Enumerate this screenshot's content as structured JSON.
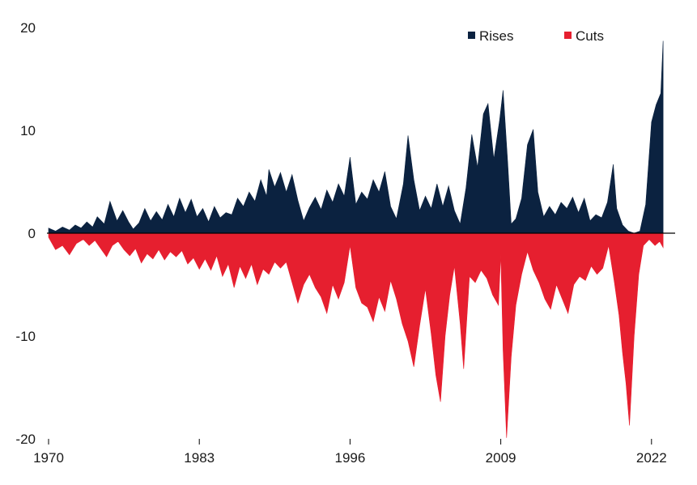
{
  "chart_data": {
    "type": "area",
    "title": "",
    "xlabel": "",
    "ylabel": "",
    "xlim": [
      1970,
      2023.2
    ],
    "ylim": [
      -20,
      20
    ],
    "x_ticks": [
      "1970",
      "1983",
      "1996",
      "2009",
      "2022"
    ],
    "y_ticks": [
      "20",
      "10",
      "0",
      "-10",
      "-20"
    ],
    "grid": false,
    "legend": {
      "placement": "top-right"
    },
    "series": [
      {
        "name": "Rises",
        "color": "#0b2240",
        "points": [
          [
            1970.0,
            0.5
          ],
          [
            1970.6,
            0.2
          ],
          [
            1971.2,
            0.6
          ],
          [
            1971.8,
            0.3
          ],
          [
            1972.3,
            0.8
          ],
          [
            1972.8,
            0.5
          ],
          [
            1973.3,
            1.1
          ],
          [
            1973.8,
            0.6
          ],
          [
            1974.2,
            1.6
          ],
          [
            1974.8,
            0.9
          ],
          [
            1975.3,
            3.1
          ],
          [
            1975.9,
            1.2
          ],
          [
            1976.4,
            2.2
          ],
          [
            1976.9,
            1.1
          ],
          [
            1977.3,
            0.4
          ],
          [
            1977.8,
            1.0
          ],
          [
            1978.3,
            2.4
          ],
          [
            1978.8,
            1.2
          ],
          [
            1979.3,
            2.1
          ],
          [
            1979.8,
            1.3
          ],
          [
            1980.3,
            2.8
          ],
          [
            1980.8,
            1.6
          ],
          [
            1981.3,
            3.4
          ],
          [
            1981.8,
            2.0
          ],
          [
            1982.3,
            3.3
          ],
          [
            1982.8,
            1.6
          ],
          [
            1983.3,
            2.4
          ],
          [
            1983.8,
            1.1
          ],
          [
            1984.3,
            2.6
          ],
          [
            1984.8,
            1.5
          ],
          [
            1985.3,
            2.0
          ],
          [
            1985.8,
            1.8
          ],
          [
            1986.3,
            3.4
          ],
          [
            1986.8,
            2.6
          ],
          [
            1987.3,
            4.0
          ],
          [
            1987.8,
            3.1
          ],
          [
            1988.3,
            5.2
          ],
          [
            1988.8,
            3.6
          ],
          [
            1989.0,
            6.2
          ],
          [
            1989.5,
            4.5
          ],
          [
            1990.0,
            5.9
          ],
          [
            1990.5,
            4.0
          ],
          [
            1991.0,
            5.7
          ],
          [
            1991.5,
            3.2
          ],
          [
            1992.0,
            1.2
          ],
          [
            1992.5,
            2.5
          ],
          [
            1993.0,
            3.5
          ],
          [
            1993.5,
            2.3
          ],
          [
            1994.0,
            4.2
          ],
          [
            1994.5,
            3.0
          ],
          [
            1995.0,
            4.8
          ],
          [
            1995.5,
            3.6
          ],
          [
            1996.0,
            7.4
          ],
          [
            1996.5,
            2.8
          ],
          [
            1997.0,
            4.0
          ],
          [
            1997.5,
            3.3
          ],
          [
            1998.0,
            5.2
          ],
          [
            1998.5,
            4.0
          ],
          [
            1999.0,
            6.0
          ],
          [
            1999.5,
            2.6
          ],
          [
            2000.0,
            1.4
          ],
          [
            2000.6,
            4.8
          ],
          [
            2001.0,
            9.5
          ],
          [
            2001.5,
            5.2
          ],
          [
            2002.0,
            2.2
          ],
          [
            2002.5,
            3.6
          ],
          [
            2003.0,
            2.4
          ],
          [
            2003.5,
            4.8
          ],
          [
            2004.0,
            2.6
          ],
          [
            2004.5,
            4.6
          ],
          [
            2005.0,
            2.2
          ],
          [
            2005.5,
            0.9
          ],
          [
            2006.0,
            4.4
          ],
          [
            2006.5,
            9.6
          ],
          [
            2007.0,
            6.4
          ],
          [
            2007.5,
            11.6
          ],
          [
            2007.9,
            12.6
          ],
          [
            2008.4,
            7.2
          ],
          [
            2008.9,
            11.0
          ],
          [
            2009.2,
            13.9
          ],
          [
            2009.6,
            6.8
          ],
          [
            2009.9,
            0.9
          ],
          [
            2010.3,
            1.4
          ],
          [
            2010.8,
            3.4
          ],
          [
            2011.3,
            8.6
          ],
          [
            2011.8,
            10.1
          ],
          [
            2012.2,
            4.0
          ],
          [
            2012.7,
            1.6
          ],
          [
            2013.2,
            2.6
          ],
          [
            2013.7,
            1.8
          ],
          [
            2014.2,
            3.0
          ],
          [
            2014.7,
            2.4
          ],
          [
            2015.2,
            3.5
          ],
          [
            2015.7,
            2.0
          ],
          [
            2016.2,
            3.4
          ],
          [
            2016.7,
            1.2
          ],
          [
            2017.2,
            1.8
          ],
          [
            2017.7,
            1.5
          ],
          [
            2018.2,
            3.0
          ],
          [
            2018.7,
            6.7
          ],
          [
            2019.0,
            2.4
          ],
          [
            2019.5,
            0.8
          ],
          [
            2020.0,
            0.2
          ],
          [
            2020.5,
            0.0
          ],
          [
            2021.0,
            0.2
          ],
          [
            2021.5,
            2.8
          ],
          [
            2022.0,
            10.8
          ],
          [
            2022.4,
            12.5
          ],
          [
            2022.8,
            13.6
          ],
          [
            2023.0,
            18.7
          ]
        ]
      },
      {
        "name": "Cuts",
        "color": "#e61f2f",
        "points": [
          [
            1970.0,
            -0.4
          ],
          [
            1970.6,
            -1.6
          ],
          [
            1971.2,
            -1.2
          ],
          [
            1971.8,
            -2.1
          ],
          [
            1972.4,
            -1.0
          ],
          [
            1973.0,
            -0.6
          ],
          [
            1973.5,
            -1.2
          ],
          [
            1974.0,
            -0.7
          ],
          [
            1974.5,
            -1.5
          ],
          [
            1975.0,
            -2.3
          ],
          [
            1975.5,
            -1.2
          ],
          [
            1976.0,
            -0.8
          ],
          [
            1976.5,
            -1.6
          ],
          [
            1977.0,
            -2.2
          ],
          [
            1977.5,
            -1.5
          ],
          [
            1978.0,
            -2.9
          ],
          [
            1978.5,
            -2.0
          ],
          [
            1979.0,
            -2.5
          ],
          [
            1979.5,
            -1.6
          ],
          [
            1980.0,
            -2.6
          ],
          [
            1980.5,
            -1.8
          ],
          [
            1981.0,
            -2.3
          ],
          [
            1981.5,
            -1.7
          ],
          [
            1982.0,
            -3.0
          ],
          [
            1982.5,
            -2.4
          ],
          [
            1983.0,
            -3.5
          ],
          [
            1983.5,
            -2.5
          ],
          [
            1984.0,
            -3.6
          ],
          [
            1984.5,
            -2.2
          ],
          [
            1985.0,
            -4.2
          ],
          [
            1985.5,
            -3.0
          ],
          [
            1986.0,
            -5.3
          ],
          [
            1986.5,
            -3.2
          ],
          [
            1987.0,
            -4.4
          ],
          [
            1987.5,
            -3.0
          ],
          [
            1988.0,
            -5.0
          ],
          [
            1988.5,
            -3.5
          ],
          [
            1989.0,
            -4.0
          ],
          [
            1989.5,
            -2.8
          ],
          [
            1990.0,
            -3.4
          ],
          [
            1990.5,
            -2.8
          ],
          [
            1991.0,
            -4.8
          ],
          [
            1991.5,
            -6.8
          ],
          [
            1992.0,
            -5.0
          ],
          [
            1992.5,
            -4.0
          ],
          [
            1993.0,
            -5.3
          ],
          [
            1993.5,
            -6.2
          ],
          [
            1994.0,
            -7.8
          ],
          [
            1994.5,
            -5.0
          ],
          [
            1995.0,
            -6.4
          ],
          [
            1995.5,
            -4.8
          ],
          [
            1996.0,
            -1.2
          ],
          [
            1996.5,
            -5.3
          ],
          [
            1997.0,
            -6.8
          ],
          [
            1997.5,
            -7.2
          ],
          [
            1998.0,
            -8.6
          ],
          [
            1998.5,
            -6.2
          ],
          [
            1999.0,
            -7.6
          ],
          [
            1999.5,
            -4.6
          ],
          [
            2000.0,
            -6.4
          ],
          [
            2000.5,
            -8.8
          ],
          [
            2001.0,
            -10.5
          ],
          [
            2001.5,
            -13.0
          ],
          [
            2002.0,
            -9.0
          ],
          [
            2002.5,
            -5.4
          ],
          [
            2003.0,
            -9.8
          ],
          [
            2003.4,
            -13.8
          ],
          [
            2003.8,
            -16.4
          ],
          [
            2004.2,
            -10.0
          ],
          [
            2004.6,
            -6.0
          ],
          [
            2005.0,
            -3.2
          ],
          [
            2005.5,
            -8.8
          ],
          [
            2005.8,
            -13.2
          ],
          [
            2006.3,
            -4.2
          ],
          [
            2006.8,
            -4.8
          ],
          [
            2007.3,
            -3.6
          ],
          [
            2007.8,
            -4.4
          ],
          [
            2008.3,
            -6.0
          ],
          [
            2008.8,
            -7.0
          ],
          [
            2009.0,
            -2.0
          ],
          [
            2009.2,
            -11.4
          ],
          [
            2009.5,
            -19.9
          ],
          [
            2009.9,
            -12.0
          ],
          [
            2010.3,
            -7.0
          ],
          [
            2010.8,
            -4.0
          ],
          [
            2011.3,
            -1.8
          ],
          [
            2011.8,
            -3.6
          ],
          [
            2012.3,
            -4.8
          ],
          [
            2012.8,
            -6.4
          ],
          [
            2013.3,
            -7.4
          ],
          [
            2013.8,
            -5.0
          ],
          [
            2014.3,
            -6.4
          ],
          [
            2014.8,
            -7.8
          ],
          [
            2015.3,
            -5.0
          ],
          [
            2015.8,
            -4.2
          ],
          [
            2016.3,
            -4.6
          ],
          [
            2016.8,
            -3.2
          ],
          [
            2017.3,
            -4.0
          ],
          [
            2017.8,
            -3.4
          ],
          [
            2018.3,
            -1.2
          ],
          [
            2018.8,
            -4.8
          ],
          [
            2019.2,
            -8.0
          ],
          [
            2019.5,
            -11.6
          ],
          [
            2019.8,
            -14.6
          ],
          [
            2020.1,
            -18.7
          ],
          [
            2020.5,
            -10.0
          ],
          [
            2020.9,
            -4.0
          ],
          [
            2021.3,
            -1.2
          ],
          [
            2021.8,
            -0.6
          ],
          [
            2022.3,
            -1.2
          ],
          [
            2022.7,
            -0.8
          ],
          [
            2023.0,
            -1.4
          ]
        ]
      }
    ]
  }
}
